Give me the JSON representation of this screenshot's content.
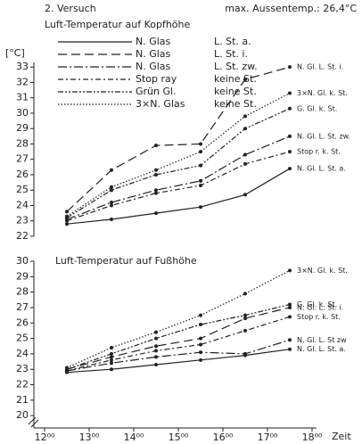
{
  "chart_data": [
    {
      "type": "line",
      "heading": "2. Versuch",
      "note": "max. Aussentemp.: 26,4°C",
      "title": "Luft-Temperatur auf Kopfhöhe",
      "y_label": "[°C]",
      "xlim": [
        11.7,
        18.1
      ],
      "ylim": [
        22,
        33.3
      ],
      "yticks": [
        22,
        23,
        24,
        25,
        26,
        27,
        28,
        29,
        30,
        31,
        32,
        33
      ],
      "x": [
        12.5,
        13.5,
        14.5,
        15.5,
        16.5,
        17.5
      ],
      "series": [
        {
          "name": "N. Glas",
          "condition": "L. St. a.",
          "end_label": "N. Gl. L. St. a.",
          "color": "#222",
          "dash": "none",
          "values": [
            22.8,
            23.1,
            23.5,
            23.9,
            24.7,
            26.4
          ]
        },
        {
          "name": "N. Glas",
          "condition": "L. St. i.",
          "end_label": "N. Gl. L. St. i.",
          "color": "#222",
          "dash": "10,5",
          "values": [
            23.6,
            26.3,
            27.9,
            28.0,
            32.2,
            33.0
          ]
        },
        {
          "name": "N. Glas",
          "condition": "L. St. zw.",
          "end_label": "N. Gl. L. St. zw.",
          "color": "#222",
          "dash": "10,3,2,3",
          "values": [
            23.1,
            24.2,
            25.0,
            25.6,
            27.3,
            28.5
          ]
        },
        {
          "name": "Stop ray",
          "condition": "keine St.",
          "end_label": "Stop r. k. St.",
          "color": "#222",
          "dash": "6,3,2,3",
          "values": [
            23.0,
            24.0,
            24.8,
            25.3,
            26.7,
            27.5
          ]
        },
        {
          "name": "Grün Gl.",
          "condition": "keine St.",
          "end_label": "G. Gl. k. St.",
          "color": "#222",
          "dash": "6,2,2,2,2,2",
          "values": [
            23.2,
            25.0,
            26.0,
            26.6,
            29.0,
            30.3
          ]
        },
        {
          "name": "3×N. Glas",
          "condition": "keine St.",
          "end_label": "3×N. Gl. k. St.",
          "color": "#222",
          "dash": "1.5,2",
          "values": [
            23.3,
            25.2,
            26.3,
            27.5,
            29.8,
            31.3
          ]
        }
      ]
    },
    {
      "type": "line",
      "title": "Luft-Temperatur auf Fußhöhe",
      "x_label": "Zeit",
      "xlim": [
        11.7,
        18.1
      ],
      "ylim": [
        19.2,
        30
      ],
      "yticks": [
        20,
        21,
        22,
        23,
        24,
        25,
        26,
        27,
        28,
        29,
        30
      ],
      "xticks": [
        {
          "value": 12,
          "label": "12⁰⁰"
        },
        {
          "value": 13,
          "label": "13⁰⁰"
        },
        {
          "value": 14,
          "label": "14⁰⁰"
        },
        {
          "value": 15,
          "label": "15⁰⁰"
        },
        {
          "value": 16,
          "label": "16⁰⁰"
        },
        {
          "value": 17,
          "label": "17⁰⁰"
        },
        {
          "value": 18,
          "label": "18⁰⁰"
        }
      ],
      "x": [
        12.5,
        13.5,
        14.5,
        15.5,
        16.5,
        17.5
      ],
      "series": [
        {
          "end_label": "N. Gl. L. St. a.",
          "color": "#222",
          "dash": "none",
          "values": [
            22.8,
            23.0,
            23.3,
            23.6,
            23.9,
            24.3
          ]
        },
        {
          "end_label": "N. Gl. L. St. i.",
          "color": "#222",
          "dash": "10,5",
          "values": [
            23.0,
            23.8,
            24.5,
            25.0,
            26.3,
            27.0
          ]
        },
        {
          "end_label": "N. Gl. L. St zw",
          "color": "#222",
          "dash": "10,3,2,3",
          "values": [
            22.9,
            23.4,
            23.8,
            24.1,
            24.0,
            24.9
          ]
        },
        {
          "end_label": "Stop r. k. St.",
          "color": "#222",
          "dash": "6,3,2,3",
          "values": [
            22.9,
            23.6,
            24.2,
            24.6,
            25.5,
            26.4
          ]
        },
        {
          "end_label": "G. Gl. k. St.",
          "color": "#222",
          "dash": "6,2,2,2,2,2",
          "values": [
            23.0,
            24.0,
            25.0,
            25.9,
            26.5,
            27.2
          ]
        },
        {
          "end_label": "3×N. Gl. k. St.",
          "color": "#222",
          "dash": "1.5,2",
          "values": [
            23.1,
            24.4,
            25.4,
            26.5,
            27.9,
            29.4
          ]
        }
      ]
    }
  ]
}
